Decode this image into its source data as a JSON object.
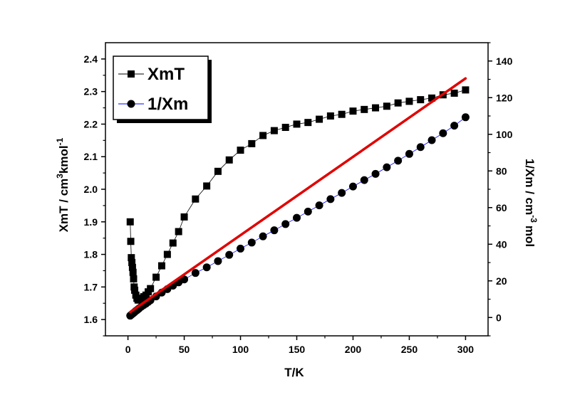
{
  "chart_data": {
    "type": "scatter",
    "title": "",
    "xlabel": "T/K",
    "ylabel_left": {
      "base": "XmT / cm",
      "sup1": "3",
      "mid": "kmol",
      "sup2": "-1"
    },
    "ylabel_right": {
      "base": "1/Xm / cm",
      "sup1": "-3",
      "tail": "mol"
    },
    "xlim": [
      -20,
      320
    ],
    "ylim_left": [
      1.55,
      2.45
    ],
    "ylim_right": [
      -10,
      150
    ],
    "x_ticks": [
      0,
      50,
      100,
      150,
      200,
      250,
      300
    ],
    "y_left_ticks": [
      1.6,
      1.7,
      1.8,
      1.9,
      2.0,
      2.1,
      2.2,
      2.3,
      2.4
    ],
    "y_right_ticks": [
      0,
      20,
      40,
      60,
      80,
      100,
      120,
      140
    ],
    "legend": {
      "position": "top-left",
      "entries": [
        {
          "label": "XmT",
          "marker": "square",
          "line_color": "#000000"
        },
        {
          "label": "1/Xm",
          "marker": "circle",
          "line_color": "#0000ff"
        }
      ]
    },
    "series": [
      {
        "name": "XmT",
        "axis": "left",
        "marker": "square",
        "color": "#000000",
        "x": [
          2,
          2.5,
          3,
          3.5,
          4,
          4.5,
          5,
          5.5,
          6,
          7,
          8,
          9,
          10,
          12,
          14,
          16,
          18,
          20,
          25,
          30,
          35,
          40,
          45,
          50,
          60,
          70,
          80,
          90,
          100,
          110,
          120,
          130,
          140,
          150,
          160,
          170,
          180,
          190,
          200,
          210,
          220,
          230,
          240,
          250,
          260,
          270,
          280,
          290,
          300
        ],
        "y": [
          1.9,
          1.84,
          1.79,
          1.775,
          1.76,
          1.745,
          1.725,
          1.7,
          1.69,
          1.675,
          1.665,
          1.66,
          1.66,
          1.665,
          1.67,
          1.675,
          1.685,
          1.695,
          1.73,
          1.765,
          1.8,
          1.835,
          1.87,
          1.915,
          1.97,
          2.01,
          2.055,
          2.09,
          2.12,
          2.14,
          2.165,
          2.18,
          2.19,
          2.2,
          2.205,
          2.215,
          2.225,
          2.23,
          2.24,
          2.245,
          2.25,
          2.255,
          2.265,
          2.27,
          2.275,
          2.28,
          2.29,
          2.295,
          2.305
        ]
      },
      {
        "name": "1/Xm",
        "axis": "right",
        "marker": "circle",
        "color": "#000000",
        "x": [
          2,
          3,
          4,
          5,
          6,
          7,
          8,
          9,
          10,
          12,
          14,
          16,
          18,
          20,
          25,
          30,
          35,
          40,
          45,
          50,
          60,
          70,
          80,
          90,
          100,
          110,
          120,
          130,
          140,
          150,
          160,
          170,
          180,
          190,
          200,
          210,
          220,
          230,
          240,
          250,
          260,
          270,
          280,
          290,
          300
        ],
        "y": [
          1,
          1.5,
          2,
          2.5,
          3,
          3.6,
          4,
          4.5,
          5,
          6,
          6.8,
          7.6,
          8.5,
          9.4,
          11.5,
          13.6,
          15.5,
          17.4,
          19.2,
          20.8,
          24.3,
          27.4,
          30.8,
          34.2,
          37.6,
          40.9,
          44.3,
          47.6,
          51,
          54.4,
          57.8,
          61.2,
          64.6,
          68,
          71.5,
          75,
          78.4,
          82,
          85.6,
          89.3,
          93,
          96.8,
          100.6,
          104.7,
          109.3
        ]
      }
    ],
    "fit_line": {
      "axis": "right",
      "color": "#e00000",
      "x": [
        2,
        300
      ],
      "y": [
        3,
        130.5
      ]
    }
  }
}
